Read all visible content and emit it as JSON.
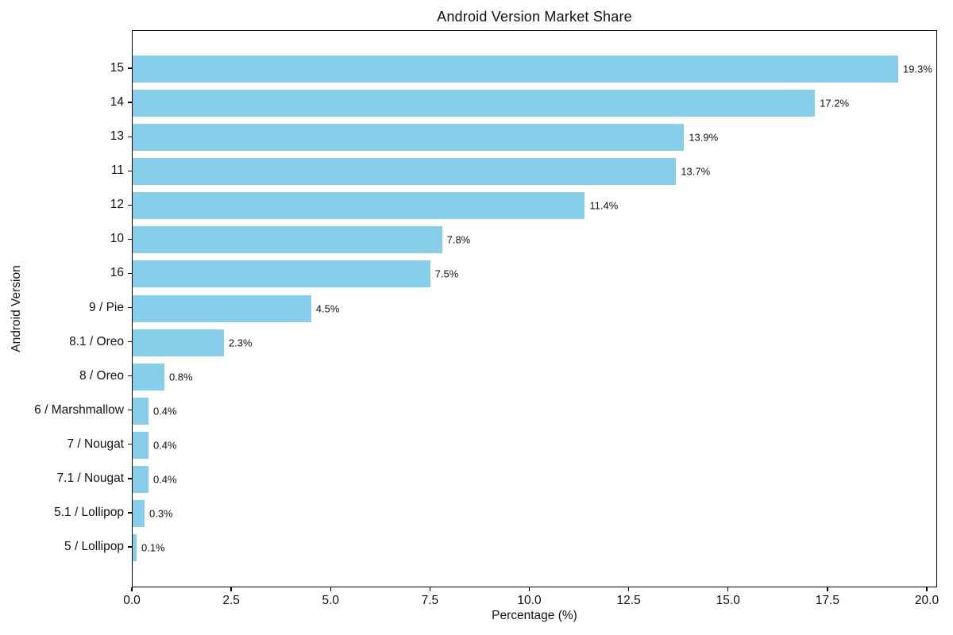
{
  "chart_data": {
    "type": "bar",
    "orientation": "horizontal",
    "title": "Android Version Market Share",
    "xlabel": "Percentage (%)",
    "ylabel": "Android Version",
    "categories": [
      "15",
      "14",
      "13",
      "11",
      "12",
      "10",
      "16",
      "9 / Pie",
      "8.1 / Oreo",
      "8 / Oreo",
      "6 / Marshmallow",
      "7 / Nougat",
      "7.1 / Nougat",
      "5.1 / Lollipop",
      "5 / Lollipop"
    ],
    "values": [
      19.3,
      17.2,
      13.9,
      13.7,
      11.4,
      7.8,
      7.5,
      4.5,
      2.3,
      0.8,
      0.4,
      0.4,
      0.4,
      0.3,
      0.1
    ],
    "value_labels": [
      "19.3%",
      "17.2%",
      "13.9%",
      "13.7%",
      "11.4%",
      "7.8%",
      "7.5%",
      "4.5%",
      "2.3%",
      "0.8%",
      "0.4%",
      "0.4%",
      "0.4%",
      "0.3%",
      "0.1%"
    ],
    "x_ticks": [
      "0.0",
      "2.5",
      "5.0",
      "7.5",
      "10.0",
      "12.5",
      "15.0",
      "17.5",
      "20.0"
    ],
    "x_tick_values": [
      0,
      2.5,
      5,
      7.5,
      10,
      12.5,
      15,
      17.5,
      20
    ],
    "xlim": [
      0,
      20.26
    ],
    "bar_color": "#87CEEB",
    "axis_color": "#000000",
    "background_color": "#ffffff",
    "grid": false,
    "legend": null
  }
}
